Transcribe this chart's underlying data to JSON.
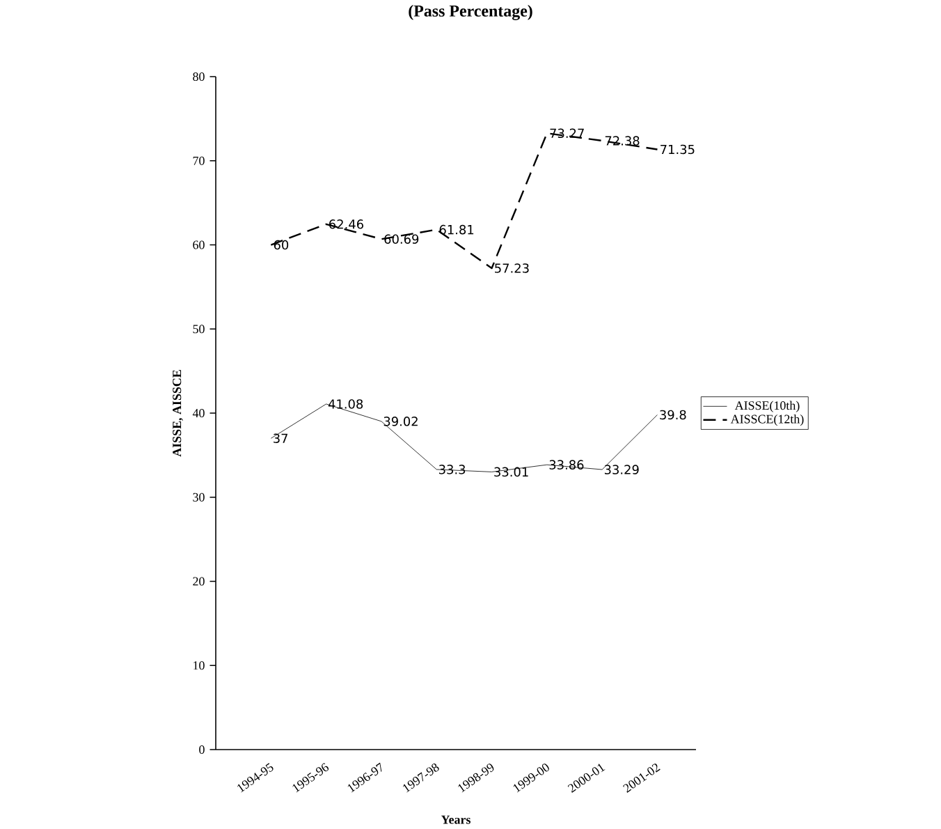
{
  "chart_data": {
    "type": "line",
    "title": "(Pass Percentage)",
    "xlabel": "Years",
    "ylabel": "AISSE, AISSCE",
    "categories": [
      "1994-95",
      "1995-96",
      "1996-97",
      "1997-98",
      "1998-99",
      "1999-00",
      "2000-01",
      "2001-02"
    ],
    "series": [
      {
        "name": "AISSE(10th)",
        "color": "#000000",
        "line_style": "solid",
        "values": [
          37,
          41.08,
          39.02,
          33.3,
          33.01,
          33.86,
          33.29,
          39.8
        ]
      },
      {
        "name": "AISSCE(12th)",
        "color": "#000000",
        "line_style": "dashed",
        "values": [
          60,
          62.46,
          60.69,
          61.81,
          57.23,
          73.27,
          72.38,
          71.35
        ]
      }
    ],
    "ylim": [
      0,
      80
    ],
    "yticks": [
      0,
      10,
      20,
      30,
      40,
      50,
      60,
      70,
      80
    ],
    "data_labels": true,
    "legend": "right",
    "grid": false,
    "marker": "none"
  }
}
